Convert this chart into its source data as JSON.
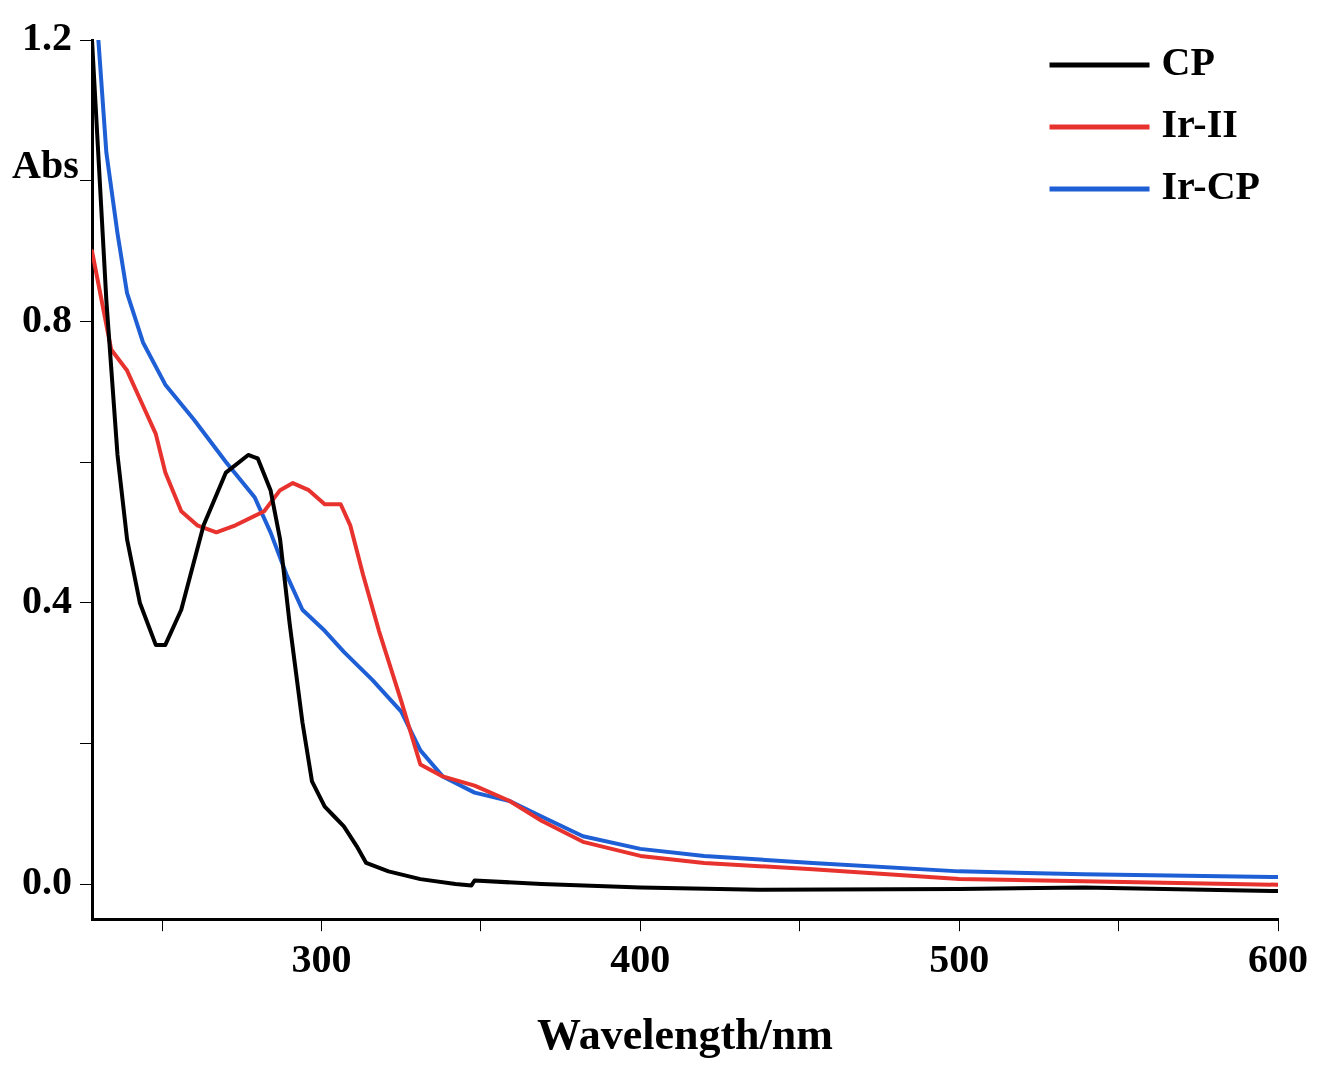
{
  "chart_data": {
    "type": "line",
    "xlabel": "Wavelength/nm",
    "ylabel": "Abs",
    "xlim": [
      228,
      600
    ],
    "ylim": [
      -0.05,
      1.2
    ],
    "xticks": [
      {
        "value": 250,
        "label": null
      },
      300,
      {
        "value": 350,
        "label": null
      },
      400,
      {
        "value": 450,
        "label": null
      },
      500,
      {
        "value": 550,
        "label": null
      },
      600
    ],
    "yticks": [
      "0.0",
      {
        "value": 0.2,
        "label": null
      },
      {
        "value": 0.4,
        "label": "0.4"
      },
      {
        "value": 0.6,
        "label": null
      },
      {
        "value": 0.8,
        "label": "0.8"
      },
      {
        "value": 1.0,
        "label": null
      },
      {
        "value": 1.2,
        "label": "1.2"
      }
    ],
    "grid": false,
    "legend": "top right",
    "marker": "none",
    "line_style": "solid",
    "series": [
      {
        "name": "CP",
        "color": "#000000",
        "x": [
          228,
          232.5,
          236,
          239,
          243,
          248,
          251,
          256,
          263,
          270,
          277,
          280,
          284,
          287,
          290,
          294,
          297,
          301,
          304,
          307,
          311,
          314,
          321,
          331,
          342,
          347,
          348,
          369,
          400,
          437,
          500,
          539,
          600
        ],
        "values": [
          1.2,
          0.83,
          0.61,
          0.49,
          0.4,
          0.34,
          0.34,
          0.39,
          0.51,
          0.585,
          0.61,
          0.605,
          0.56,
          0.49,
          0.37,
          0.23,
          0.146,
          0.11,
          0.096,
          0.082,
          0.054,
          0.03,
          0.018,
          0.007,
          0,
          -0.002,
          0.005,
          0,
          -0.005,
          -0.008,
          -0.007,
          -0.005,
          -0.01
        ]
      },
      {
        "name": "Ir-II",
        "color": "#e8322e",
        "x": [
          228,
          231,
          234,
          239,
          244,
          248,
          251,
          256,
          261,
          267,
          273,
          282,
          287,
          291,
          296,
          301,
          306,
          309,
          313,
          318,
          325,
          331,
          338,
          348,
          359,
          369,
          382,
          400,
          420,
          454,
          500,
          539,
          600
        ],
        "values": [
          0.9,
          0.83,
          0.76,
          0.73,
          0.68,
          0.64,
          0.585,
          0.53,
          0.51,
          0.5,
          0.51,
          0.53,
          0.56,
          0.57,
          0.56,
          0.54,
          0.54,
          0.51,
          0.44,
          0.36,
          0.26,
          0.17,
          0.153,
          0.14,
          0.118,
          0.09,
          0.06,
          0.04,
          0.03,
          0.021,
          0.007,
          0.004,
          -0.001
        ]
      },
      {
        "name": "Ir-CP",
        "color": "#1f5fd6",
        "x": [
          230,
          232.5,
          236,
          239,
          244,
          251,
          260,
          270,
          279,
          284,
          289,
          294,
          301,
          307,
          316,
          325,
          331,
          338,
          348,
          359,
          369,
          382,
          400,
          420,
          454,
          500,
          539,
          600
        ],
        "values": [
          1.2,
          1.04,
          0.925,
          0.84,
          0.77,
          0.71,
          0.66,
          0.6,
          0.55,
          0.5,
          0.44,
          0.39,
          0.36,
          0.33,
          0.29,
          0.245,
          0.19,
          0.153,
          0.13,
          0.118,
          0.096,
          0.068,
          0.05,
          0.04,
          0.03,
          0.018,
          0.014,
          0.01
        ]
      }
    ]
  }
}
